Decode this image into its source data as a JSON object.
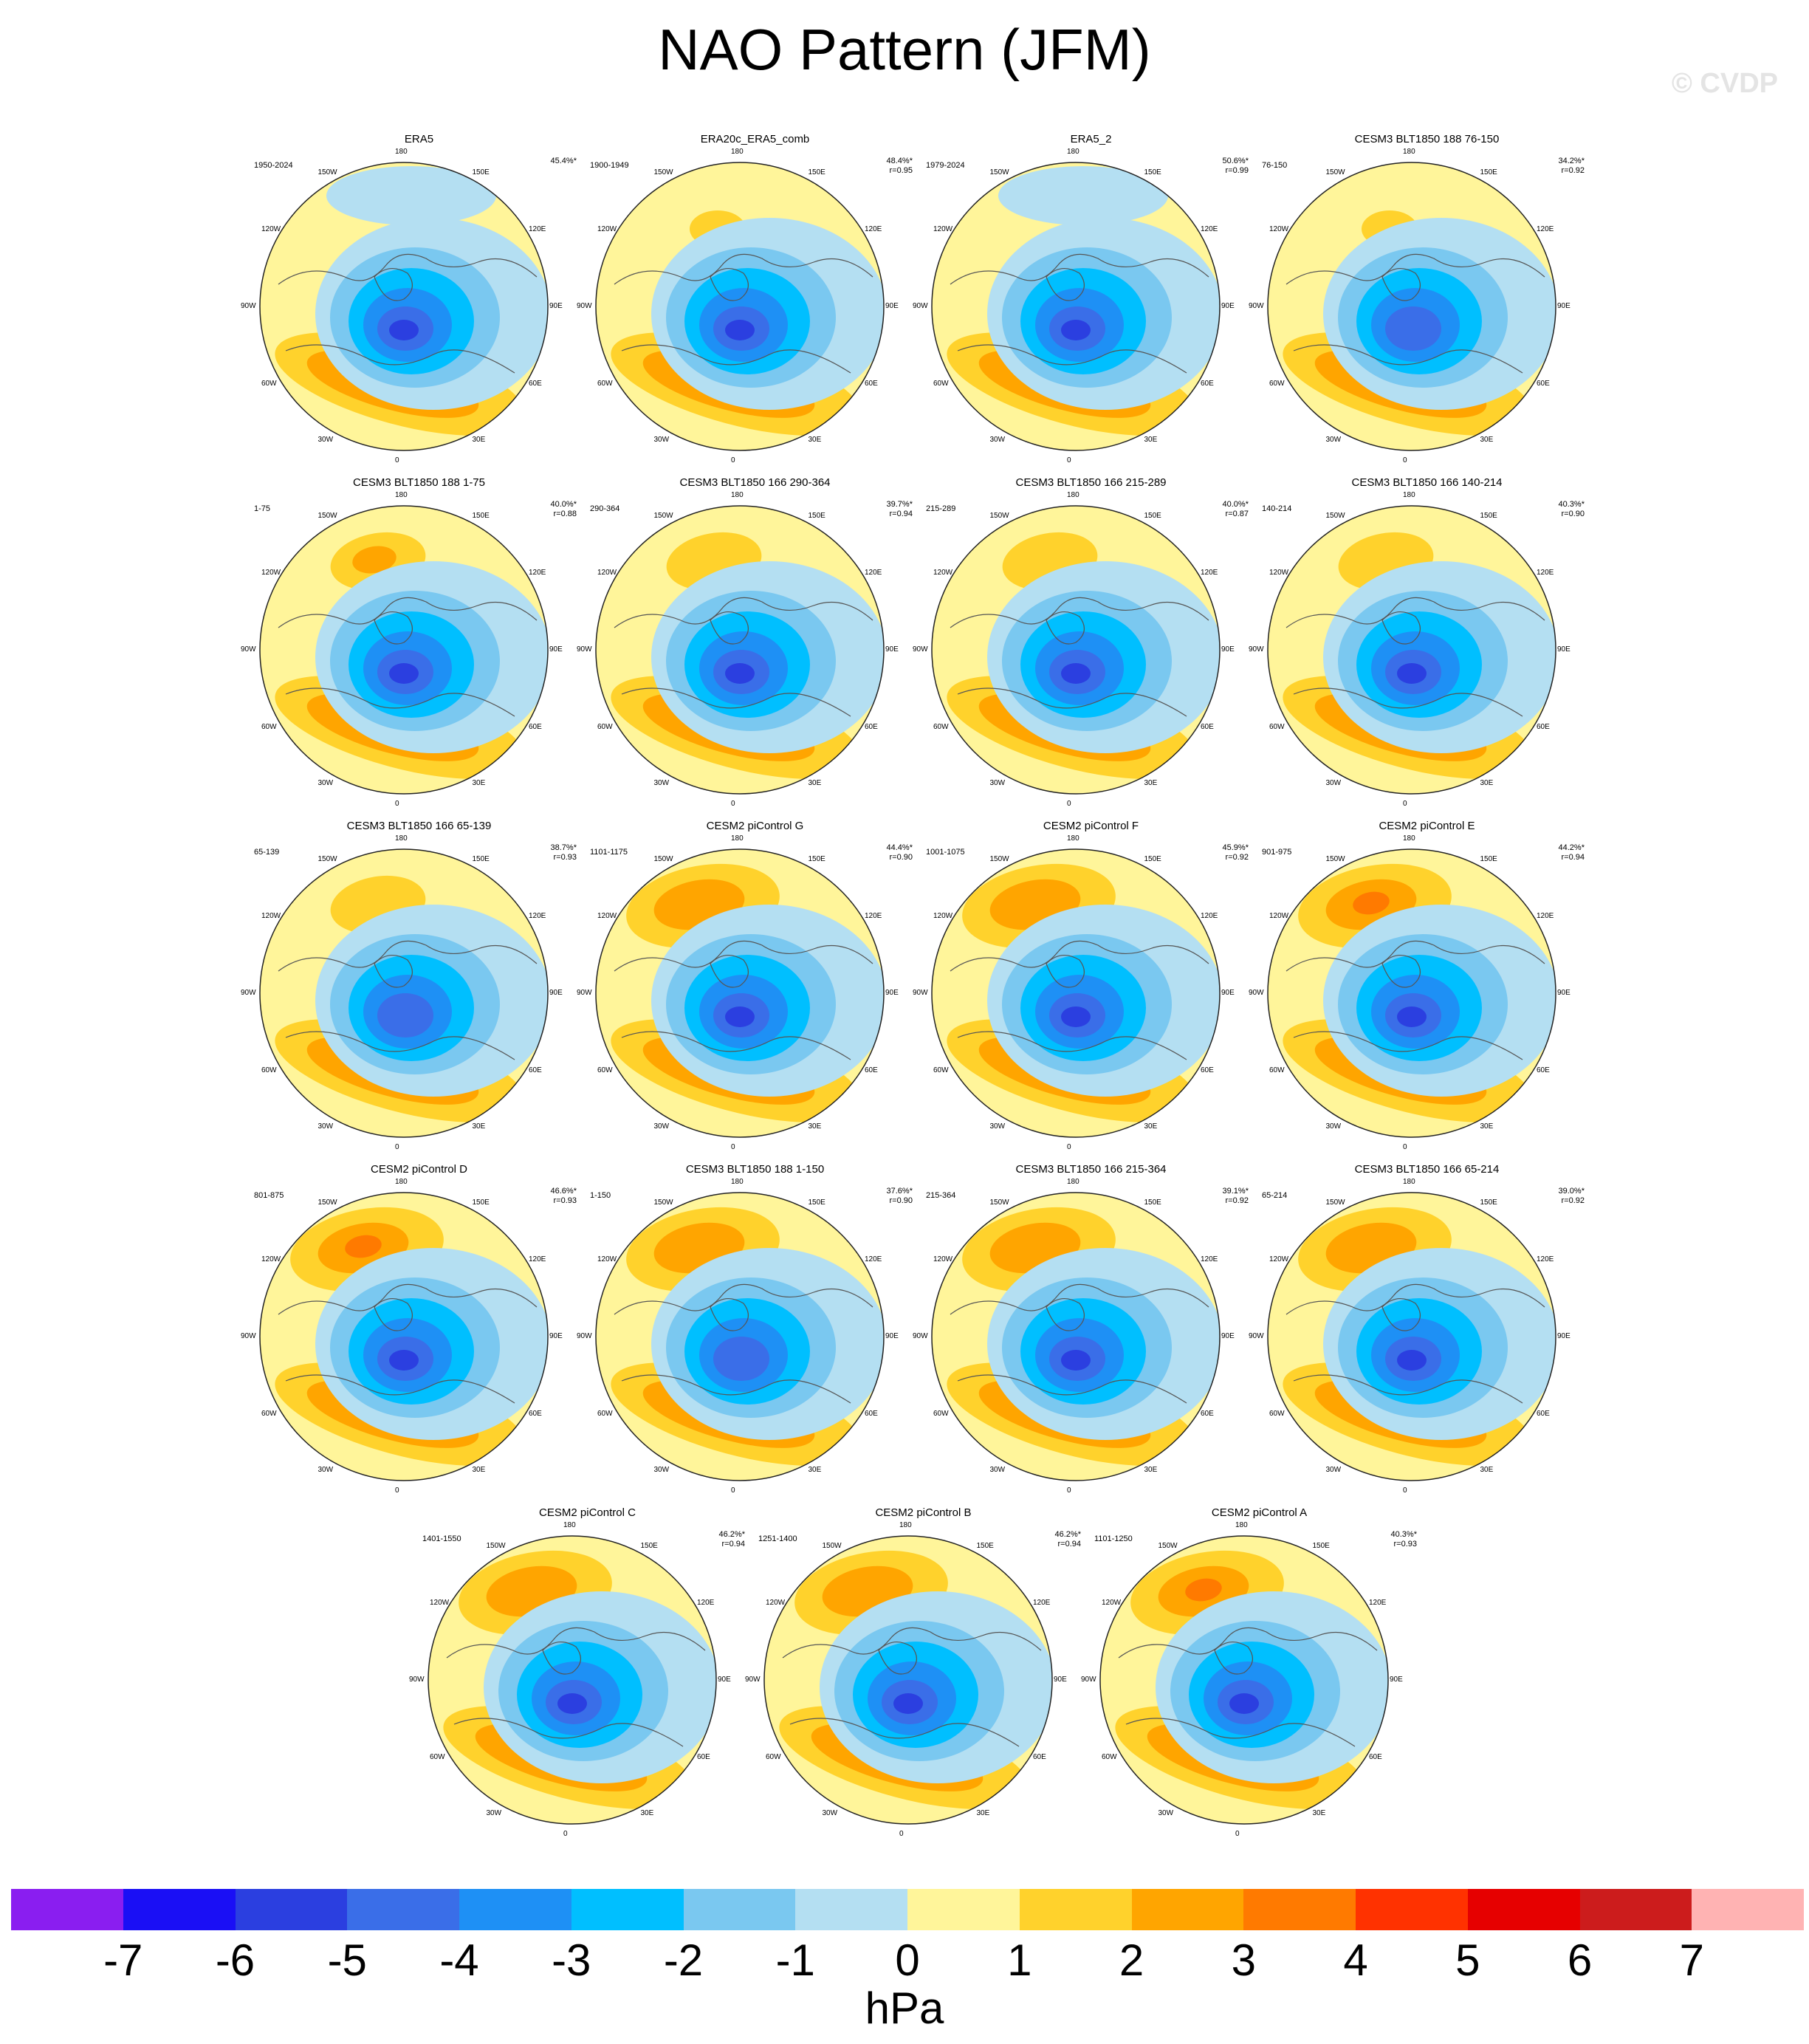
{
  "title": "NAO Pattern (JFM)",
  "watermark": "© CVDP",
  "lon_labels": [
    "180",
    "150E",
    "120E",
    "90E",
    "60E",
    "30E",
    "0",
    "30W",
    "60W",
    "90W",
    "120W",
    "150W"
  ],
  "panels": [
    {
      "title": "ERA5",
      "period": "1950-2024",
      "pct": "45.4%*",
      "r": ""
    },
    {
      "title": "ERA20c_ERA5_comb",
      "period": "1900-1949",
      "pct": "48.4%*",
      "r": "r=0.95"
    },
    {
      "title": "ERA5_2",
      "period": "1979-2024",
      "pct": "50.6%*",
      "r": "r=0.99"
    },
    {
      "title": "CESM3 BLT1850 188 76-150",
      "period": "76-150",
      "pct": "34.2%*",
      "r": "r=0.92"
    },
    {
      "title": "CESM3 BLT1850 188 1-75",
      "period": "1-75",
      "pct": "40.0%*",
      "r": "r=0.88"
    },
    {
      "title": "CESM3 BLT1850 166 290-364",
      "period": "290-364",
      "pct": "39.7%*",
      "r": "r=0.94"
    },
    {
      "title": "CESM3 BLT1850 166 215-289",
      "period": "215-289",
      "pct": "40.0%*",
      "r": "r=0.87"
    },
    {
      "title": "CESM3 BLT1850 166 140-214",
      "period": "140-214",
      "pct": "40.3%*",
      "r": "r=0.90"
    },
    {
      "title": "CESM3 BLT1850 166 65-139",
      "period": "65-139",
      "pct": "38.7%*",
      "r": "r=0.93"
    },
    {
      "title": "CESM2 piControl G",
      "period": "1101-1175",
      "pct": "44.4%*",
      "r": "r=0.90"
    },
    {
      "title": "CESM2 piControl F",
      "period": "1001-1075",
      "pct": "45.9%*",
      "r": "r=0.92"
    },
    {
      "title": "CESM2 piControl E",
      "period": "901-975",
      "pct": "44.2%*",
      "r": "r=0.94"
    },
    {
      "title": "CESM2 piControl D",
      "period": "801-875",
      "pct": "46.6%*",
      "r": "r=0.93"
    },
    {
      "title": "CESM3 BLT1850 188 1-150",
      "period": "1-150",
      "pct": "37.6%*",
      "r": "r=0.90"
    },
    {
      "title": "CESM3 BLT1850 166 215-364",
      "period": "215-364",
      "pct": "39.1%*",
      "r": "r=0.92"
    },
    {
      "title": "CESM3 BLT1850 166 65-214",
      "period": "65-214",
      "pct": "39.0%*",
      "r": "r=0.92"
    },
    {
      "title": "CESM2 piControl C",
      "period": "1401-1550",
      "pct": "46.2%*",
      "r": "r=0.94"
    },
    {
      "title": "CESM2 piControl B",
      "period": "1251-1400",
      "pct": "46.2%*",
      "r": "r=0.94"
    },
    {
      "title": "CESM2 piControl A",
      "period": "1101-1250",
      "pct": "40.3%*",
      "r": "r=0.93"
    }
  ],
  "colorbar": {
    "colors": [
      "#8a1ef0",
      "#1a0ff5",
      "#2b3fe0",
      "#3a6ee8",
      "#1e90f5",
      "#00bfff",
      "#7ac8f0",
      "#b4dff2",
      "#fff59a",
      "#ffd22c",
      "#ffa500",
      "#ff7a00",
      "#ff3200",
      "#e60000",
      "#cc1c1c",
      "#ffb3b3"
    ],
    "ticks": [
      "-7",
      "-6",
      "-5",
      "-4",
      "-3",
      "-2",
      "-1",
      "0",
      "1",
      "2",
      "3",
      "4",
      "5",
      "6",
      "7"
    ],
    "units": "hPa"
  },
  "colors": {
    "ocean_neutral": "#fff59a",
    "weak_neg": "#b4dff2",
    "neg1": "#7ac8f0",
    "neg2": "#00bfff",
    "neg3": "#1e90f5",
    "neg4": "#3a6ee8",
    "neg5": "#2b3fe0",
    "pos1": "#ffd22c",
    "pos2": "#ffa500",
    "pos3": "#ff7a00",
    "pos4": "#ff3200"
  }
}
